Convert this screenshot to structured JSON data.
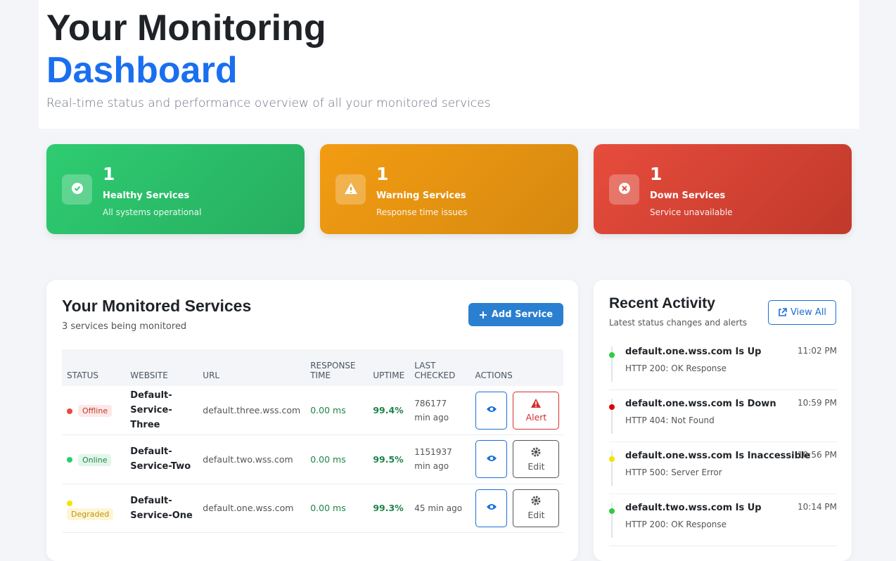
{
  "header": {
    "title_line1": "Your Monitoring",
    "title_line2": "Dashboard",
    "subtitle": "Real-time status and performance overview of all your monitored services"
  },
  "stats": [
    {
      "count": 1,
      "label": "Healthy Services",
      "note": "All systems operational"
    },
    {
      "count": 1,
      "label": "Warning Services",
      "note": "Response time issues"
    },
    {
      "count": 1,
      "label": "Down Services",
      "note": "Service unavailable"
    }
  ],
  "services": {
    "title": "Your Monitored Services",
    "subtitle": "3 services being monitored",
    "add_button": "Add Service",
    "columns": [
      "STATUS",
      "WEBSITE",
      "URL",
      "RESPONSE TIME",
      "UPTIME",
      "LAST CHECKED",
      "ACTIONS"
    ],
    "rows": [
      {
        "status": "Offline",
        "website": "Default-Service-Three",
        "url": "default.three.wss.com",
        "response_time": "0.00 ms",
        "uptime": "99.4%",
        "last_checked": "786177 min ago",
        "action": "Alert"
      },
      {
        "status": "Online",
        "website": "Default-Service-Two",
        "url": "default.two.wss.com",
        "response_time": "0.00 ms",
        "uptime": "99.5%",
        "last_checked": "1151937 min ago",
        "action": "Edit"
      },
      {
        "status": "Degraded",
        "website": "Default-Service-One",
        "url": "default.one.wss.com",
        "response_time": "0.00 ms",
        "uptime": "99.3%",
        "last_checked": "45 min ago",
        "action": "Edit"
      }
    ]
  },
  "activity": {
    "title": "Recent Activity",
    "subtitle": "Latest status changes and alerts",
    "view_all": "View All",
    "items": [
      {
        "title": "default.one.wss.com Is Up",
        "detail": "HTTP 200: OK Response",
        "time": "11:02 PM"
      },
      {
        "title": "default.one.wss.com Is Down",
        "detail": "HTTP 404: Not Found",
        "time": "10:59 PM"
      },
      {
        "title": "default.one.wss.com Is Inaccessible",
        "detail": "HTTP 500: Server Error",
        "time": "10:56 PM"
      },
      {
        "title": "default.two.wss.com Is Up",
        "detail": "HTTP 200: OK Response",
        "time": "10:14 PM"
      }
    ]
  }
}
